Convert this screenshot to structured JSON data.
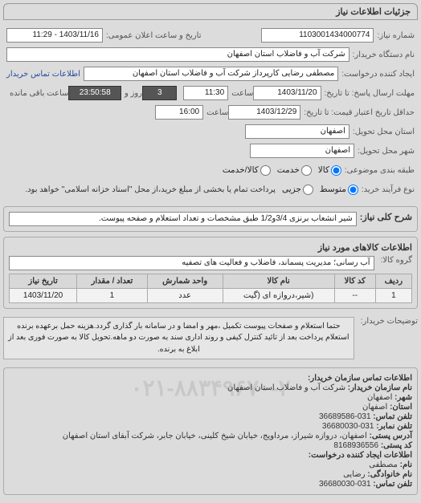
{
  "panel_title": "جزئیات اطلاعات نیاز",
  "top": {
    "need_no_label": "شماره نیاز:",
    "need_no": "1103001434000774",
    "announce_label": "تاریخ و ساعت اعلان عمومی:",
    "announce_value": "1403/11/16 - 11:29",
    "requester_org_label": "نام دستگاه خریدار:",
    "requester_org": "شرکت آب و فاضلاب استان اصفهان",
    "creator_label": "ایجاد کننده درخواست:",
    "creator": "مصطفی رضایی کارپرداز شرکت آب و فاضلاب استان اصفهان",
    "creator_contact_link": "اطلاعات تماس خریدار",
    "reply_deadline_label": "مهلت ارسال پاسخ: تا تاریخ:",
    "reply_date": "1403/11/20",
    "time_label": "ساعت",
    "reply_time": "11:30",
    "remaining_days": "3",
    "day_label": "روز و",
    "remaining_time": "23:50:58",
    "remaining_suffix": "ساعت باقی مانده",
    "price_valid_label": "حداقل تاریخ اعتبار قیمت: تا تاریخ:",
    "price_valid_date": "1403/12/29",
    "price_valid_time": "16:00",
    "delivery_province_label": "استان محل تحویل:",
    "delivery_province": "اصفهان",
    "delivery_city_label": "شهر محل تحویل:",
    "delivery_city": "اصفهان",
    "subject_cat_label": "طبقه بندی موضوعی:",
    "subject_options": [
      {
        "label": "کالا",
        "checked": true
      },
      {
        "label": "خدمت",
        "checked": false
      },
      {
        "label": "کالا/خدمت",
        "checked": false
      }
    ],
    "buy_type_label": "نوع فرآیند خرید:",
    "buy_options": [
      {
        "label": "متوسط",
        "checked": true
      },
      {
        "label": "جزیی",
        "checked": false
      }
    ],
    "buy_note": "پرداخت تمام یا بخشی از مبلغ خرید،از محل \"اسناد خزانه اسلامی\" خواهد بود."
  },
  "key": {
    "title_label": "شرح کلی نیاز:",
    "title_value": "شیر انشعاب برنزی 3/4و1/2 طبق مشخصات و تعداد استعلام و صفحه پیوست."
  },
  "goods": {
    "section_title": "اطلاعات کالاهای مورد نیاز",
    "group_label": "گروه کالا:",
    "group_value": "آب رسانی؛ مدیریت پسماند، فاضلاب و فعالیت های تصفیه",
    "columns": [
      "ردیف",
      "کد کالا",
      "نام کالا",
      "واحد شمارش",
      "تعداد / مقدار",
      "تاریخ نیاز"
    ],
    "rows": [
      [
        "1",
        "--",
        "(شیر،دروازه ای (گیت",
        "عدد",
        "1",
        "1403/11/20"
      ]
    ]
  },
  "buyer_note": {
    "label": "توضیحات خریدار:",
    "text": "حتما استعلام و صفحات پیوست تکمیل ،مهر و امضا و در سامانه بار گذاری گردد.هزینه حمل برعهده برنده استعلام پرداخت بعد از تائید کنترل کیفی و روند اداری سند به صورت دو ماهه.تحویل کالا به صورت فوری بعد از ابلاغ به برنده."
  },
  "org": {
    "section_title": "اطلاعات تماس سازمان خریدار:",
    "org_label": "نام سازمان خریدار:",
    "org_value": "شرکت آب و فاضلاب استان اصفهان",
    "city_label": "شهر:",
    "city_value": "اصفهان",
    "province_label": "استان:",
    "province_value": "اصفهان",
    "phone_label": "تلفن تماس:",
    "phone_value": "031-36689586",
    "fax_label": "تلفن نمابر:",
    "fax_value": "031-36680030",
    "postaddr_label": "آدرس پستی:",
    "postaddr_value": "اصفهان، دروازه شیراز، مرداویج، خیابان شیخ کلینی، خیابان جابر، شرکت آبفای استان اصفهان",
    "postcode_label": "کد پستی:",
    "postcode_value": "8168936556",
    "req_creator_header": "اطلاعات ایجاد کننده درخواست:",
    "name_label": "نام:",
    "name_value": "مصطفی",
    "family_label": "نام خانوادگی:",
    "family_value": "رضایی",
    "phone2_label": "تلفن تماس:",
    "phone2_value": "031-36680030",
    "watermark": "۰۲۱-۸۸۳۴۹۶۷۰-۲"
  }
}
